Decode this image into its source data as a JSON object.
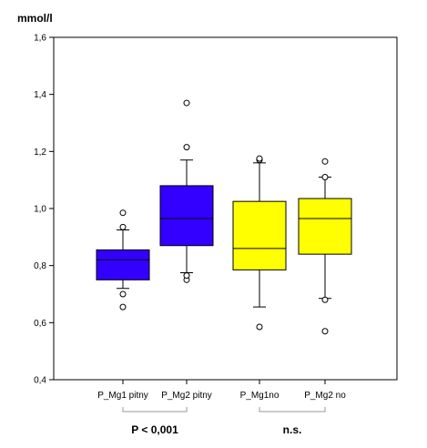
{
  "chart_data": {
    "type": "boxplot",
    "ylabel": "mmol/l",
    "ylim": [
      0.4,
      1.6
    ],
    "yticks": [
      "1,6",
      "1,4",
      "1,2",
      "1,0",
      "0,8",
      "0,6",
      "0,4"
    ],
    "ytick_values": [
      1.6,
      1.4,
      1.2,
      1.0,
      0.8,
      0.6,
      0.4
    ],
    "grid": false,
    "categories": [
      "P_Mg1 pitny",
      "P_Mg2 pitny",
      "P_Mg1no",
      "P_Mg2 no"
    ],
    "boxes": [
      {
        "category": "P_Mg1 pitny",
        "color": "#3300ff",
        "whisker_low": 0.72,
        "q1": 0.75,
        "median": 0.82,
        "q3": 0.855,
        "whisker_high": 0.925,
        "outliers": [
          0.655,
          0.7,
          0.935,
          0.985
        ]
      },
      {
        "category": "P_Mg2 pitny",
        "color": "#3300ff",
        "whisker_low": 0.775,
        "q1": 0.87,
        "median": 0.965,
        "q3": 1.08,
        "whisker_high": 1.17,
        "outliers": [
          0.75,
          0.765,
          1.215,
          1.37
        ]
      },
      {
        "category": "P_Mg1no",
        "color": "#ffff00",
        "whisker_low": 0.655,
        "q1": 0.785,
        "median": 0.86,
        "q3": 1.025,
        "whisker_high": 1.16,
        "outliers": [
          0.585,
          1.17,
          1.175
        ]
      },
      {
        "category": "P_Mg2 no",
        "color": "#ffff00",
        "whisker_low": 0.685,
        "q1": 0.84,
        "median": 0.965,
        "q3": 1.035,
        "whisker_high": 1.11,
        "outliers": [
          0.57,
          0.68,
          1.11,
          1.165
        ]
      }
    ],
    "annotations": [
      {
        "text": "P  <  0,001",
        "group": [
          0,
          1
        ]
      },
      {
        "text": "n.s.",
        "group": [
          2,
          3
        ]
      }
    ]
  }
}
